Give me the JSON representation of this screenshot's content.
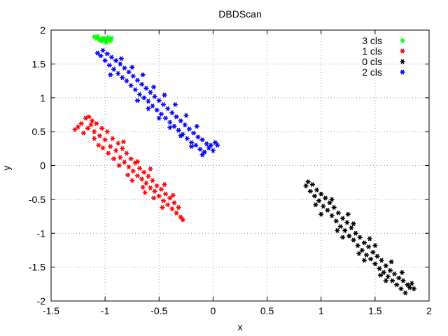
{
  "chart_data": {
    "type": "scatter",
    "title": "DBDScan",
    "xlabel": "x",
    "ylabel": "y",
    "xlim": [
      -1.5,
      2
    ],
    "ylim": [
      -2,
      2
    ],
    "xticks": [
      -1.5,
      -1,
      -0.5,
      0,
      0.5,
      1,
      1.5,
      2
    ],
    "yticks": [
      -2,
      -1.5,
      -1,
      -0.5,
      0,
      0.5,
      1,
      1.5,
      2
    ],
    "xtick_labels": [
      "-1.5",
      "-1",
      "-0.5",
      "0",
      "0.5",
      "1",
      "1.5",
      "2"
    ],
    "ytick_labels": [
      "-2",
      "-1.5",
      "-1",
      "-0.5",
      "0",
      "0.5",
      "1",
      "1.5",
      "2"
    ],
    "grid": true,
    "legend_position": "top-right",
    "marker": "asterisk",
    "series": [
      {
        "name": "3 cls",
        "color": "#00ff00",
        "points": [
          [
            -1.1,
            1.9
          ],
          [
            -1.08,
            1.88
          ],
          [
            -1.06,
            1.87
          ],
          [
            -1.04,
            1.86
          ],
          [
            -1.02,
            1.88
          ],
          [
            -1.0,
            1.85
          ],
          [
            -0.98,
            1.87
          ],
          [
            -0.96,
            1.86
          ],
          [
            -0.94,
            1.88
          ],
          [
            -0.99,
            1.82
          ],
          [
            -1.03,
            1.84
          ],
          [
            -1.07,
            1.91
          ],
          [
            -0.97,
            1.89
          ],
          [
            -1.05,
            1.85
          ],
          [
            -1.01,
            1.87
          ],
          [
            -0.95,
            1.84
          ]
        ]
      },
      {
        "name": "1 cls",
        "color": "#ff0000",
        "points": [
          [
            -1.28,
            0.53
          ],
          [
            -1.25,
            0.57
          ],
          [
            -1.22,
            0.62
          ],
          [
            -1.18,
            0.7
          ],
          [
            -1.15,
            0.72
          ],
          [
            -1.12,
            0.66
          ],
          [
            -1.2,
            0.48
          ],
          [
            -1.16,
            0.55
          ],
          [
            -1.13,
            0.6
          ],
          [
            -1.1,
            0.5
          ],
          [
            -1.08,
            0.62
          ],
          [
            -1.05,
            0.44
          ],
          [
            -1.03,
            0.55
          ],
          [
            -1.0,
            0.38
          ],
          [
            -0.98,
            0.5
          ],
          [
            -1.06,
            0.3
          ],
          [
            -0.95,
            0.28
          ],
          [
            -0.93,
            0.4
          ],
          [
            -0.9,
            0.22
          ],
          [
            -0.88,
            0.33
          ],
          [
            -0.86,
            0.12
          ],
          [
            -0.84,
            0.25
          ],
          [
            -0.82,
            0.05
          ],
          [
            -0.8,
            0.18
          ],
          [
            -0.78,
            -0.02
          ],
          [
            -0.76,
            0.1
          ],
          [
            -0.74,
            -0.08
          ],
          [
            -0.72,
            0.04
          ],
          [
            -0.7,
            -0.15
          ],
          [
            -0.68,
            -0.04
          ],
          [
            -0.66,
            -0.2
          ],
          [
            -0.64,
            -0.1
          ],
          [
            -0.62,
            -0.26
          ],
          [
            -0.6,
            -0.16
          ],
          [
            -0.58,
            -0.33
          ],
          [
            -0.56,
            -0.22
          ],
          [
            -0.54,
            -0.38
          ],
          [
            -0.52,
            -0.3
          ],
          [
            -0.5,
            -0.45
          ],
          [
            -0.48,
            -0.35
          ],
          [
            -0.46,
            -0.52
          ],
          [
            -0.44,
            -0.42
          ],
          [
            -0.42,
            -0.58
          ],
          [
            -0.4,
            -0.48
          ],
          [
            -0.38,
            -0.64
          ],
          [
            -0.36,
            -0.55
          ],
          [
            -0.34,
            -0.7
          ],
          [
            -0.32,
            -0.62
          ],
          [
            -0.3,
            -0.76
          ],
          [
            -0.28,
            -0.8
          ],
          [
            -0.92,
            0.1
          ],
          [
            -0.87,
            0.0
          ],
          [
            -0.97,
            0.18
          ],
          [
            -1.02,
            0.26
          ],
          [
            -0.75,
            -0.22
          ],
          [
            -0.65,
            -0.32
          ],
          [
            -0.55,
            -0.48
          ],
          [
            -0.45,
            -0.28
          ],
          [
            -0.58,
            -0.05
          ],
          [
            -0.7,
            0.06
          ],
          [
            -0.83,
            0.35
          ],
          [
            -1.1,
            0.4
          ],
          [
            -0.47,
            -0.62
          ],
          [
            -0.37,
            -0.44
          ],
          [
            -0.63,
            -0.4
          ],
          [
            -0.79,
            -0.14
          ]
        ]
      },
      {
        "name": "0 cls",
        "color": "#000000",
        "points": [
          [
            0.86,
            -0.3
          ],
          [
            0.88,
            -0.24
          ],
          [
            0.9,
            -0.38
          ],
          [
            0.92,
            -0.28
          ],
          [
            0.94,
            -0.45
          ],
          [
            0.96,
            -0.36
          ],
          [
            0.98,
            -0.52
          ],
          [
            1.0,
            -0.42
          ],
          [
            1.02,
            -0.6
          ],
          [
            1.04,
            -0.48
          ],
          [
            1.06,
            -0.66
          ],
          [
            1.08,
            -0.55
          ],
          [
            1.1,
            -0.74
          ],
          [
            1.12,
            -0.62
          ],
          [
            1.14,
            -0.82
          ],
          [
            1.16,
            -0.7
          ],
          [
            1.18,
            -0.9
          ],
          [
            1.2,
            -0.78
          ],
          [
            1.22,
            -0.96
          ],
          [
            1.24,
            -0.84
          ],
          [
            1.26,
            -1.04
          ],
          [
            1.28,
            -0.92
          ],
          [
            1.3,
            -1.1
          ],
          [
            1.32,
            -1.0
          ],
          [
            1.34,
            -1.18
          ],
          [
            1.36,
            -1.06
          ],
          [
            1.38,
            -1.25
          ],
          [
            1.4,
            -1.14
          ],
          [
            1.42,
            -1.32
          ],
          [
            1.44,
            -1.2
          ],
          [
            1.46,
            -1.38
          ],
          [
            1.48,
            -1.28
          ],
          [
            1.5,
            -1.45
          ],
          [
            1.52,
            -1.34
          ],
          [
            1.54,
            -1.52
          ],
          [
            1.56,
            -1.4
          ],
          [
            1.58,
            -1.58
          ],
          [
            1.6,
            -1.48
          ],
          [
            1.62,
            -1.64
          ],
          [
            1.64,
            -1.55
          ],
          [
            1.66,
            -1.7
          ],
          [
            1.68,
            -1.6
          ],
          [
            1.7,
            -1.76
          ],
          [
            1.72,
            -1.66
          ],
          [
            1.74,
            -1.82
          ],
          [
            1.76,
            -1.7
          ],
          [
            1.78,
            -1.88
          ],
          [
            1.8,
            -1.76
          ],
          [
            1.82,
            -1.8
          ],
          [
            1.84,
            -1.74
          ],
          [
            1.86,
            -1.82
          ],
          [
            1.0,
            -0.72
          ],
          [
            1.1,
            -0.5
          ],
          [
            1.2,
            -1.06
          ],
          [
            1.3,
            -0.86
          ],
          [
            1.4,
            -1.4
          ],
          [
            1.5,
            -1.18
          ],
          [
            1.6,
            -1.7
          ],
          [
            1.15,
            -0.96
          ],
          [
            1.35,
            -1.3
          ],
          [
            1.45,
            -1.08
          ],
          [
            1.25,
            -0.72
          ],
          [
            0.95,
            -0.58
          ],
          [
            1.55,
            -1.62
          ],
          [
            1.65,
            -1.42
          ],
          [
            1.75,
            -1.58
          ]
        ]
      },
      {
        "name": "2 cls",
        "color": "#0000ff",
        "points": [
          [
            -1.07,
            1.66
          ],
          [
            -1.04,
            1.62
          ],
          [
            -1.02,
            1.7
          ],
          [
            -1.0,
            1.55
          ],
          [
            -0.98,
            1.65
          ],
          [
            -0.96,
            1.48
          ],
          [
            -0.94,
            1.6
          ],
          [
            -0.92,
            1.42
          ],
          [
            -0.9,
            1.55
          ],
          [
            -0.88,
            1.36
          ],
          [
            -0.86,
            1.5
          ],
          [
            -0.84,
            1.3
          ],
          [
            -0.82,
            1.44
          ],
          [
            -0.8,
            1.25
          ],
          [
            -0.78,
            1.38
          ],
          [
            -0.76,
            1.18
          ],
          [
            -0.74,
            1.32
          ],
          [
            -0.72,
            1.12
          ],
          [
            -0.7,
            1.26
          ],
          [
            -0.68,
            1.05
          ],
          [
            -0.66,
            1.2
          ],
          [
            -0.64,
            1.0
          ],
          [
            -0.62,
            1.14
          ],
          [
            -0.6,
            0.95
          ],
          [
            -0.58,
            1.08
          ],
          [
            -0.56,
            0.88
          ],
          [
            -0.54,
            1.02
          ],
          [
            -0.52,
            0.82
          ],
          [
            -0.5,
            0.96
          ],
          [
            -0.48,
            0.76
          ],
          [
            -0.46,
            0.9
          ],
          [
            -0.44,
            0.7
          ],
          [
            -0.42,
            0.84
          ],
          [
            -0.4,
            0.64
          ],
          [
            -0.38,
            0.78
          ],
          [
            -0.36,
            0.58
          ],
          [
            -0.34,
            0.72
          ],
          [
            -0.32,
            0.52
          ],
          [
            -0.3,
            0.66
          ],
          [
            -0.28,
            0.46
          ],
          [
            -0.26,
            0.6
          ],
          [
            -0.24,
            0.4
          ],
          [
            -0.22,
            0.54
          ],
          [
            -0.2,
            0.34
          ],
          [
            -0.18,
            0.48
          ],
          [
            -0.16,
            0.3
          ],
          [
            -0.14,
            0.42
          ],
          [
            -0.12,
            0.24
          ],
          [
            -0.1,
            0.38
          ],
          [
            -0.08,
            0.2
          ],
          [
            -0.06,
            0.32
          ],
          [
            -0.04,
            0.26
          ],
          [
            -0.02,
            0.3
          ],
          [
            0.0,
            0.22
          ],
          [
            0.02,
            0.34
          ],
          [
            0.04,
            0.3
          ],
          [
            -0.85,
            1.58
          ],
          [
            -0.75,
            1.45
          ],
          [
            -0.65,
            1.34
          ],
          [
            -0.55,
            1.16
          ],
          [
            -0.45,
            1.04
          ],
          [
            -0.35,
            0.9
          ],
          [
            -0.25,
            0.74
          ],
          [
            -0.15,
            0.58
          ],
          [
            -0.7,
            0.96
          ],
          [
            -0.6,
            0.84
          ],
          [
            -0.5,
            0.7
          ],
          [
            -0.4,
            0.56
          ],
          [
            -0.3,
            0.44
          ],
          [
            -0.2,
            0.28
          ],
          [
            -0.95,
            1.34
          ],
          [
            -0.1,
            0.16
          ]
        ]
      }
    ]
  }
}
